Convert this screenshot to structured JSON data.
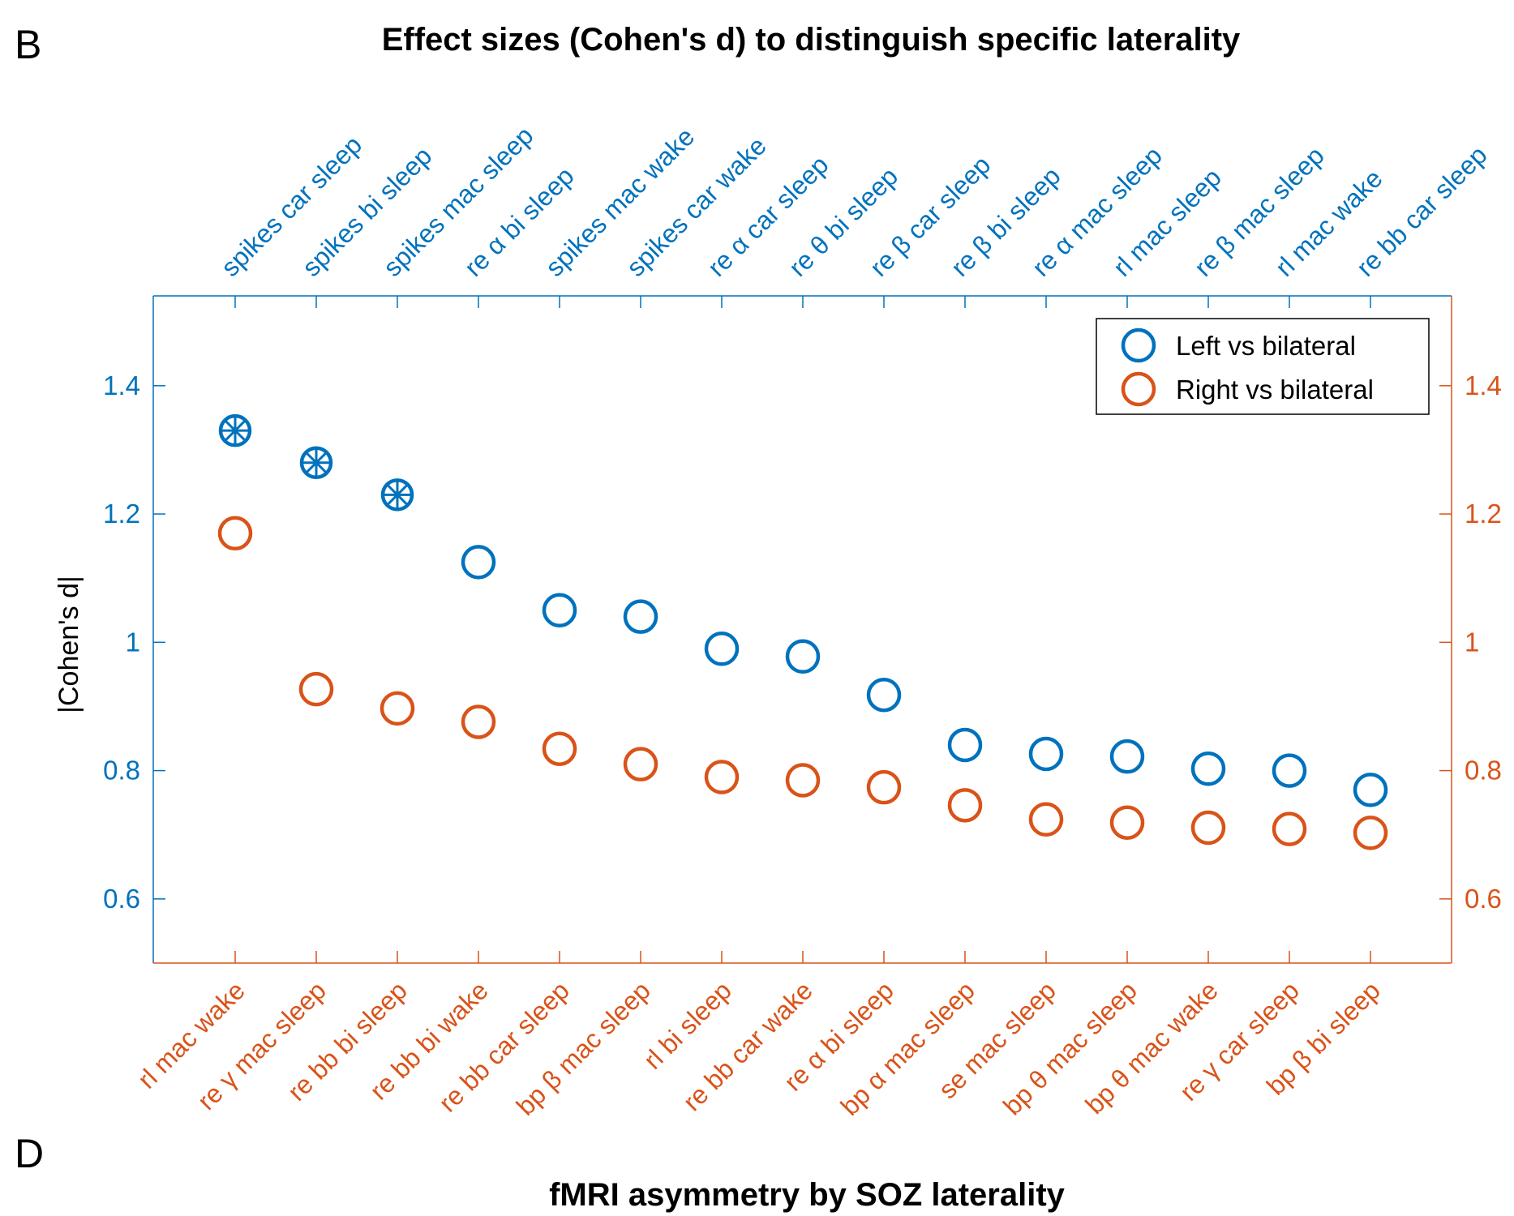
{
  "panel_labels": {
    "top": "B",
    "bottom": "D"
  },
  "colors": {
    "left": "#0072BD",
    "right": "#D95319",
    "axis_text": "#000000"
  },
  "chart_data": {
    "type": "scatter",
    "title": "Effect sizes (Cohen's  d) to distinguish specific laterality",
    "xlabel": "fMRI asymmetry by SOZ laterality",
    "ylabel": "|Cohen's  d|",
    "ylim": [
      0.5,
      1.54
    ],
    "yticks": [
      0.6,
      0.8,
      1,
      1.2,
      1.4
    ],
    "ytick_labels": [
      "0.6",
      "0.8",
      "1",
      "1.2",
      "1.4"
    ],
    "grid": false,
    "legend_position": "top-right",
    "series": [
      {
        "name": "Left vs bilateral",
        "axis": "top/left",
        "categories": [
          "spikes car sleep",
          "spikes bi sleep",
          "spikes mac sleep",
          "re α bi sleep",
          "spikes mac wake",
          "spikes car wake",
          "re α car sleep",
          "re θ bi sleep",
          "re β car sleep",
          "re β bi sleep",
          "re α mac sleep",
          "rl mac sleep",
          "re β mac sleep",
          "rl mac wake",
          "re bb car sleep"
        ],
        "values": [
          1.33,
          1.28,
          1.23,
          1.125,
          1.05,
          1.04,
          0.99,
          0.978,
          0.918,
          0.84,
          0.826,
          0.822,
          0.803,
          0.8,
          0.77
        ],
        "significant": [
          true,
          true,
          true,
          false,
          false,
          false,
          false,
          false,
          false,
          false,
          false,
          false,
          false,
          false,
          false
        ]
      },
      {
        "name": "Right vs bilateral",
        "axis": "bottom/right",
        "categories": [
          "rl mac wake",
          "re γ mac sleep",
          "re bb bi sleep",
          "re bb bi wake",
          "re bb car sleep",
          "bp β mac sleep",
          "rl bi sleep",
          "re bb car wake",
          "re α bi sleep",
          "bp α mac sleep",
          "se mac sleep",
          "bp θ mac sleep",
          "bp θ mac wake",
          "re γ car sleep",
          "bp β bi sleep"
        ],
        "values": [
          1.17,
          0.927,
          0.897,
          0.876,
          0.834,
          0.81,
          0.79,
          0.785,
          0.774,
          0.746,
          0.724,
          0.719,
          0.711,
          0.709,
          0.703
        ],
        "significant": [
          false,
          false,
          false,
          false,
          false,
          false,
          false,
          false,
          false,
          false,
          false,
          false,
          false,
          false,
          false
        ]
      }
    ]
  }
}
